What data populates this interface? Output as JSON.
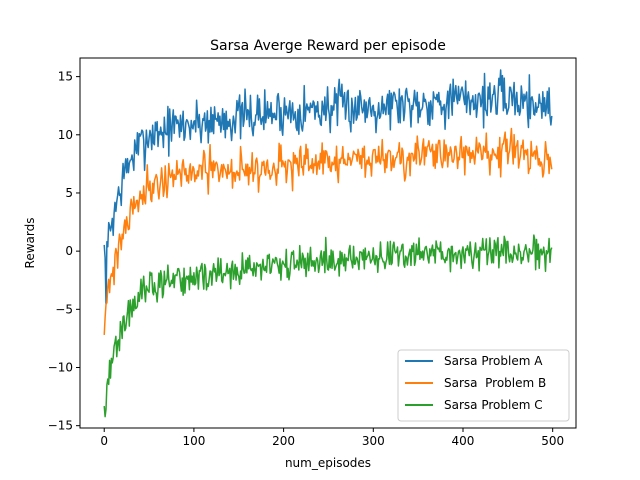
{
  "chart_data": {
    "type": "line",
    "title": "Sarsa Averge Reward per episode",
    "xlabel": "num_episodes",
    "ylabel": "Rewards",
    "xlim": [
      -27,
      526
    ],
    "ylim": [
      -15.2,
      16.6
    ],
    "xticks": [
      0,
      100,
      200,
      300,
      400,
      500
    ],
    "yticks": [
      -15,
      -10,
      -5,
      0,
      5,
      10,
      15
    ],
    "xtick_labels": [
      "0",
      "100",
      "200",
      "300",
      "400",
      "500"
    ],
    "ytick_labels": [
      "−15",
      "−10",
      "−5",
      "0",
      "5",
      "10",
      "15"
    ],
    "grid": false,
    "legend_position": "lower-right",
    "n_points": 500,
    "series": [
      {
        "name": "Sarsa Problem A",
        "color": "#1f77b4",
        "key_x": [
          0,
          2,
          5,
          10,
          20,
          30,
          40,
          50,
          70,
          100,
          150,
          200,
          250,
          300,
          350,
          400,
          450,
          499
        ],
        "key_y": [
          0,
          -2.5,
          1.5,
          3,
          6,
          8,
          9,
          10,
          10.5,
          11,
          11.5,
          12,
          12.3,
          12.5,
          12.8,
          13,
          13.2,
          12.5
        ],
        "noise": 1.0,
        "seed": 7
      },
      {
        "name": "Sarsa  Problem B",
        "color": "#ff7f0e",
        "key_x": [
          0,
          2,
          5,
          10,
          20,
          30,
          40,
          50,
          70,
          100,
          150,
          200,
          250,
          300,
          350,
          400,
          450,
          499
        ],
        "key_y": [
          -5.8,
          -4.5,
          -3,
          -1.5,
          1.5,
          3.5,
          5,
          5.5,
          6.3,
          6.8,
          7,
          7.3,
          7.6,
          8,
          8.2,
          8.4,
          8.6,
          7.5
        ],
        "noise": 0.8,
        "seed": 21
      },
      {
        "name": "Sarsa Problem C",
        "color": "#2ca02c",
        "key_x": [
          0,
          2,
          5,
          10,
          20,
          30,
          40,
          50,
          70,
          100,
          150,
          200,
          250,
          300,
          350,
          400,
          450,
          499
        ],
        "key_y": [
          -12.5,
          -13.5,
          -11,
          -9,
          -6.5,
          -5,
          -3.8,
          -3.2,
          -2.7,
          -2.3,
          -1.7,
          -1.2,
          -0.8,
          -0.5,
          -0.3,
          -0.2,
          -0.1,
          -0.3
        ],
        "noise": 0.7,
        "seed": 42
      }
    ]
  }
}
